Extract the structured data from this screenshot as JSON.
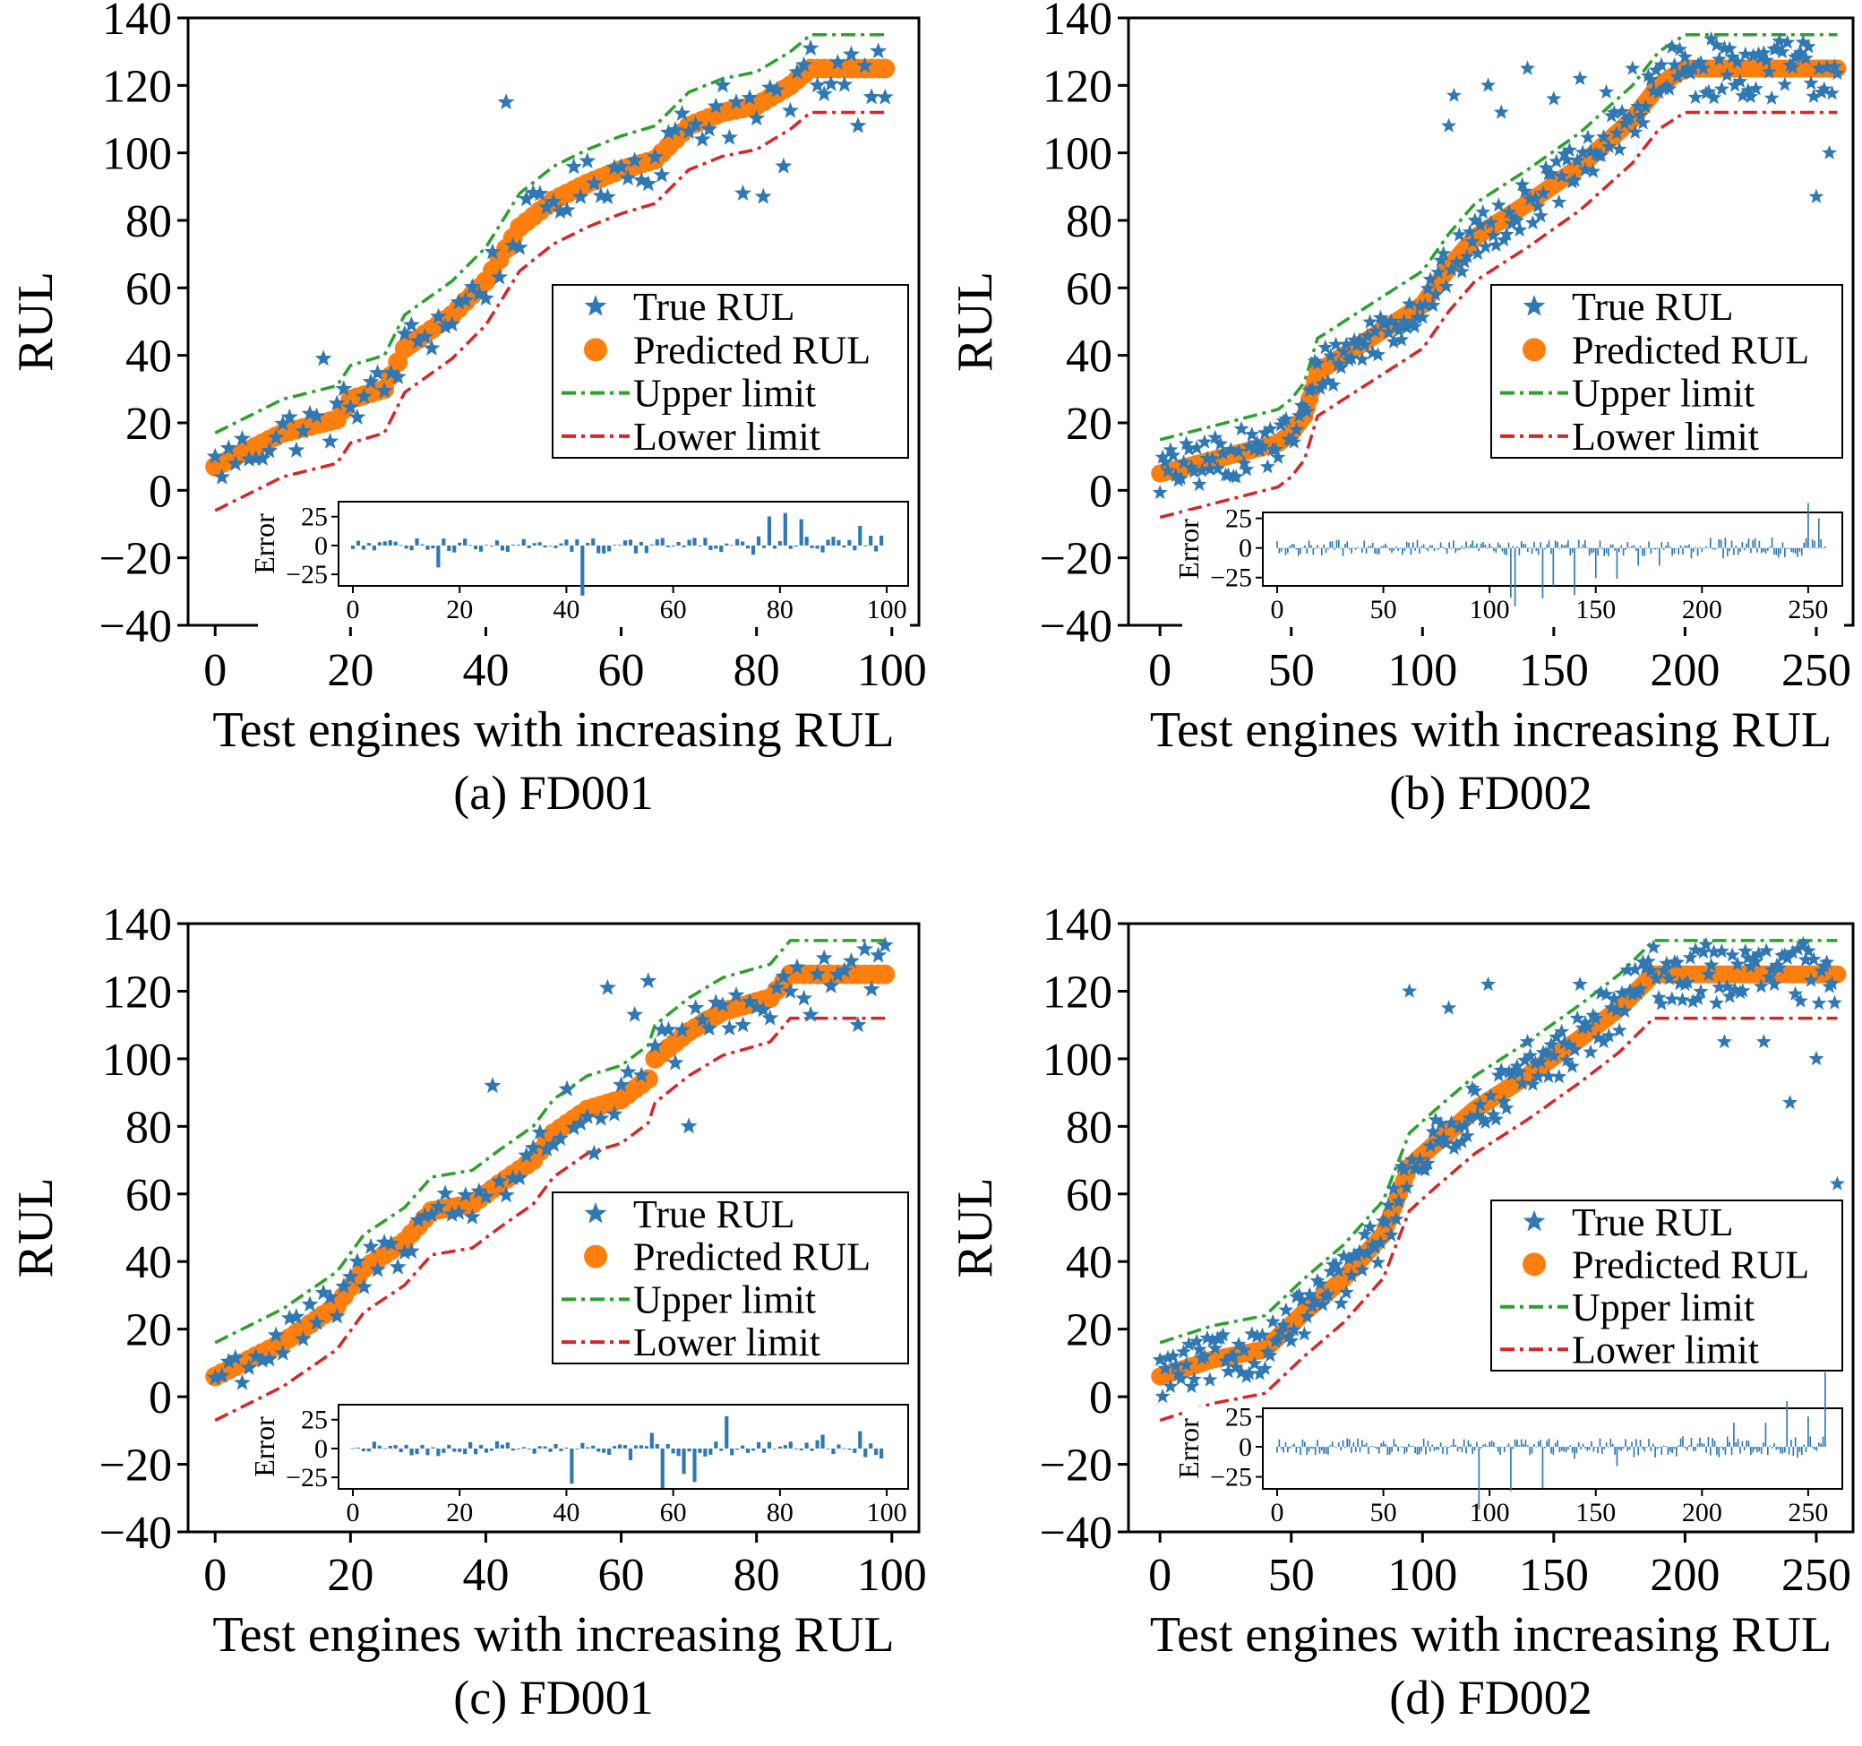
{
  "chart_data": [
    {
      "panel": "a",
      "type": "scatter",
      "caption": "(a) FD001",
      "dataset": "FD001",
      "xlabel": "Test engines with increasing RUL",
      "ylabel": "RUL",
      "xlim": [
        -4,
        104
      ],
      "ylim": [
        -40,
        140
      ],
      "xticks": [
        0,
        20,
        40,
        60,
        80,
        100
      ],
      "yticks": [
        -40,
        -20,
        0,
        20,
        40,
        60,
        80,
        100,
        120,
        140
      ],
      "n_engines": 100,
      "rul_cap": 125,
      "limit_offset": 10,
      "legend": {
        "position": "center-right",
        "entries": [
          "True RUL",
          "Predicted RUL",
          "Upper limit",
          "Lower limit"
        ]
      },
      "predicted_knots": [
        [
          0,
          7
        ],
        [
          10,
          17
        ],
        [
          18,
          21
        ],
        [
          20,
          27
        ],
        [
          25,
          30
        ],
        [
          28,
          42
        ],
        [
          35,
          52
        ],
        [
          40,
          62
        ],
        [
          45,
          78
        ],
        [
          50,
          86
        ],
        [
          55,
          91
        ],
        [
          60,
          95
        ],
        [
          65,
          98
        ],
        [
          70,
          108
        ],
        [
          75,
          112
        ],
        [
          80,
          114
        ],
        [
          85,
          120
        ],
        [
          88,
          125
        ],
        [
          100,
          125
        ]
      ],
      "true_rul_highlights": [
        [
          16,
          39
        ],
        [
          43,
          115
        ],
        [
          75,
          120
        ],
        [
          78,
          88
        ],
        [
          81,
          87
        ],
        [
          84,
          96
        ],
        [
          89,
          120
        ],
        [
          95,
          108
        ],
        [
          100,
          102
        ]
      ],
      "inset": {
        "ylabel": "Error",
        "xticks": [
          0,
          20,
          40,
          60,
          80,
          100
        ],
        "yticks": [
          25,
          0,
          -25
        ],
        "ylim": [
          -35,
          38
        ]
      },
      "colors": {
        "true": "#2f78b4",
        "predicted": "#ff7f0e",
        "upper": "#2ca02c",
        "lower": "#d62728"
      }
    },
    {
      "panel": "b",
      "type": "scatter",
      "caption": "(b) FD002",
      "dataset": "FD002",
      "xlabel": "Test engines with increasing RUL",
      "ylabel": "RUL",
      "xlim": [
        -12,
        264
      ],
      "ylim": [
        -40,
        140
      ],
      "xticks": [
        0,
        50,
        100,
        150,
        200,
        250
      ],
      "yticks": [
        -40,
        -20,
        0,
        20,
        40,
        60,
        80,
        100,
        120,
        140
      ],
      "n_engines": 259,
      "rul_cap": 125,
      "limit_offset": 10,
      "legend": {
        "position": "center-right",
        "entries": [
          "True RUL",
          "Predicted RUL",
          "Upper limit",
          "Lower limit"
        ]
      },
      "predicted_knots": [
        [
          0,
          5
        ],
        [
          20,
          9
        ],
        [
          45,
          14
        ],
        [
          50,
          17
        ],
        [
          55,
          22
        ],
        [
          60,
          35
        ],
        [
          80,
          45
        ],
        [
          100,
          55
        ],
        [
          110,
          66
        ],
        [
          120,
          75
        ],
        [
          140,
          85
        ],
        [
          160,
          96
        ],
        [
          180,
          110
        ],
        [
          190,
          120
        ],
        [
          200,
          125
        ],
        [
          259,
          125
        ]
      ],
      "true_rul_highlights": [
        [
          110,
          108
        ],
        [
          112,
          117
        ],
        [
          120,
          80
        ],
        [
          125,
          120
        ],
        [
          130,
          112
        ],
        [
          140,
          125
        ],
        [
          150,
          116
        ],
        [
          160,
          122
        ],
        [
          170,
          118
        ],
        [
          180,
          125
        ],
        [
          250,
          87
        ],
        [
          255,
          100
        ]
      ],
      "inset": {
        "ylabel": "Error",
        "xticks": [
          0,
          50,
          100,
          150,
          200,
          250
        ],
        "yticks": [
          25,
          0,
          -25
        ],
        "ylim": [
          -32,
          30
        ]
      },
      "colors": {
        "true": "#2f78b4",
        "predicted": "#ff7f0e",
        "upper": "#2ca02c",
        "lower": "#d62728"
      }
    },
    {
      "panel": "c",
      "type": "scatter",
      "caption": "(c) FD001",
      "dataset": "FD001",
      "xlabel": "Test engines with increasing RUL",
      "ylabel": "RUL",
      "xlim": [
        -4,
        104
      ],
      "ylim": [
        -40,
        140
      ],
      "xticks": [
        0,
        20,
        40,
        60,
        80,
        100
      ],
      "yticks": [
        -40,
        -20,
        0,
        20,
        40,
        60,
        80,
        100,
        120,
        140
      ],
      "n_engines": 100,
      "rul_cap": 125,
      "limit_offset": 10,
      "legend": {
        "position": "center-right",
        "entries": [
          "True RUL",
          "Predicted RUL",
          "Upper limit",
          "Lower limit"
        ]
      },
      "predicted_knots": [
        [
          0,
          6
        ],
        [
          10,
          16
        ],
        [
          18,
          27
        ],
        [
          22,
          38
        ],
        [
          28,
          46
        ],
        [
          32,
          55
        ],
        [
          38,
          57
        ],
        [
          42,
          63
        ],
        [
          47,
          70
        ],
        [
          50,
          78
        ],
        [
          55,
          85
        ],
        [
          60,
          88
        ],
        [
          64,
          94
        ],
        [
          65,
          100
        ],
        [
          70,
          108
        ],
        [
          75,
          114
        ],
        [
          82,
          118
        ],
        [
          85,
          125
        ],
        [
          100,
          125
        ]
      ],
      "true_rul_highlights": [
        [
          41,
          92
        ],
        [
          52,
          91
        ],
        [
          56,
          72
        ],
        [
          58,
          121
        ],
        [
          62,
          113
        ],
        [
          64,
          123
        ],
        [
          70,
          80
        ],
        [
          76,
          109
        ],
        [
          82,
          112
        ],
        [
          88,
          113
        ],
        [
          95,
          110
        ],
        [
          100,
          111
        ]
      ],
      "inset": {
        "ylabel": "Error",
        "xticks": [
          0,
          20,
          40,
          60,
          80,
          100
        ],
        "yticks": [
          25,
          0,
          -25
        ],
        "ylim": [
          -35,
          38
        ]
      },
      "colors": {
        "true": "#2f78b4",
        "predicted": "#ff7f0e",
        "upper": "#2ca02c",
        "lower": "#d62728"
      }
    },
    {
      "panel": "d",
      "type": "scatter",
      "caption": "(d) FD002",
      "dataset": "FD002",
      "xlabel": "Test engines with increasing RUL",
      "ylabel": "RUL",
      "xlim": [
        -12,
        264
      ],
      "ylim": [
        -40,
        140
      ],
      "xticks": [
        0,
        50,
        100,
        150,
        200,
        250
      ],
      "yticks": [
        -40,
        -20,
        0,
        20,
        40,
        60,
        80,
        100,
        120,
        140
      ],
      "n_engines": 259,
      "rul_cap": 125,
      "limit_offset": 10,
      "legend": {
        "position": "center-right",
        "entries": [
          "True RUL",
          "Predicted RUL",
          "Upper limit",
          "Lower limit"
        ]
      },
      "predicted_knots": [
        [
          0,
          6
        ],
        [
          20,
          11
        ],
        [
          40,
          14
        ],
        [
          55,
          25
        ],
        [
          70,
          35
        ],
        [
          85,
          48
        ],
        [
          95,
          68
        ],
        [
          105,
          75
        ],
        [
          120,
          85
        ],
        [
          140,
          95
        ],
        [
          160,
          106
        ],
        [
          175,
          115
        ],
        [
          188,
          125
        ],
        [
          259,
          125
        ]
      ],
      "true_rul_highlights": [
        [
          12,
          3
        ],
        [
          95,
          120
        ],
        [
          110,
          115
        ],
        [
          125,
          122
        ],
        [
          140,
          105
        ],
        [
          160,
          122
        ],
        [
          180,
          119
        ],
        [
          200,
          122
        ],
        [
          215,
          105
        ],
        [
          230,
          105
        ],
        [
          240,
          87
        ],
        [
          250,
          100
        ],
        [
          258,
          63
        ]
      ],
      "inset": {
        "ylabel": "Error",
        "xticks": [
          0,
          50,
          100,
          150,
          200,
          250
        ],
        "yticks": [
          25,
          0,
          -25
        ],
        "ylim": [
          -35,
          32
        ]
      },
      "colors": {
        "true": "#2f78b4",
        "predicted": "#ff7f0e",
        "upper": "#2ca02c",
        "lower": "#d62728"
      }
    }
  ]
}
